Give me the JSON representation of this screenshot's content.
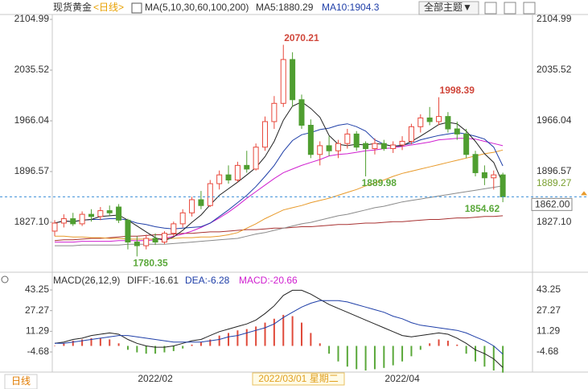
{
  "header": {
    "crosshair_icon": null
  },
  "tab": "日线",
  "theme_button": "全部主题▼",
  "chart_data": [
    {
      "type": "candlestick",
      "title": "现货黄金",
      "period": "<日线>",
      "indicator": "MA(5,10,30,60,100,200)",
      "indicator_values": [
        "MA5:1880.29",
        "MA10:1904.3"
      ],
      "crosshair_label": "2022/03/01 星期二",
      "categories": [
        null,
        null,
        null,
        null,
        null,
        null,
        null,
        null,
        null,
        null,
        null,
        "2022/02",
        null,
        null,
        null,
        null,
        null,
        null,
        null,
        null,
        null,
        null,
        null,
        null,
        null,
        null,
        null,
        null,
        null,
        null,
        null,
        null,
        null,
        null,
        null,
        null,
        null,
        null,
        "2022/04",
        null,
        null,
        null,
        null,
        null,
        null,
        null,
        null,
        null,
        null,
        null
      ],
      "open": [
        1815,
        1826,
        1832,
        1825,
        1838,
        1835,
        1843,
        1848,
        1830,
        1800,
        1795,
        1805,
        1800,
        1812,
        1825,
        1840,
        1858,
        1850,
        1880,
        1892,
        1885,
        1905,
        1900,
        1930,
        1965,
        1990,
        2050,
        1995,
        1960,
        1920,
        1932,
        1925,
        1935,
        1948,
        1935,
        1928,
        1935,
        1928,
        1933,
        1938,
        1958,
        1970,
        1965,
        1972,
        1955,
        1948,
        1920,
        1895,
        1888,
        1892
      ],
      "high": [
        1830,
        1838,
        1840,
        1842,
        1845,
        1848,
        1850,
        1852,
        1832,
        1808,
        1810,
        1812,
        1815,
        1828,
        1845,
        1862,
        1870,
        1885,
        1898,
        1905,
        1910,
        1925,
        1935,
        1972,
        2000,
        2070.21,
        2060,
        2002,
        1968,
        1938,
        1945,
        1940,
        1955,
        1952,
        1938,
        1942,
        1940,
        1938,
        1945,
        1962,
        1975,
        1985,
        1998.39,
        1978,
        1965,
        1955,
        1925,
        1905,
        1898,
        1895
      ],
      "low": [
        1808,
        1820,
        1822,
        1822,
        1828,
        1830,
        1836,
        1826,
        1790,
        1780.35,
        1790,
        1796,
        1797,
        1808,
        1820,
        1835,
        1845,
        1848,
        1872,
        1880,
        1882,
        1895,
        1898,
        1925,
        1955,
        1985,
        1985,
        1955,
        1915,
        1905,
        1918,
        1915,
        1928,
        1925,
        1889.98,
        1920,
        1925,
        1922,
        1926,
        1934,
        1950,
        1960,
        1960,
        1950,
        1940,
        1915,
        1890,
        1878,
        1872,
        1854.62
      ],
      "close": [
        1826,
        1832,
        1825,
        1838,
        1835,
        1843,
        1840,
        1830,
        1800,
        1795,
        1805,
        1800,
        1812,
        1825,
        1840,
        1858,
        1850,
        1880,
        1892,
        1885,
        1905,
        1900,
        1930,
        1965,
        1990,
        2050,
        1995,
        1960,
        1920,
        1932,
        1925,
        1935,
        1948,
        1930,
        1928,
        1935,
        1928,
        1933,
        1938,
        1958,
        1970,
        1965,
        1972,
        1955,
        1948,
        1920,
        1895,
        1888,
        1892,
        1862
      ],
      "up_color": "#e8483c",
      "down_color": "#4f9e30",
      "series": [
        {
          "color": "#222222",
          "values": [
            1826,
            1829,
            1828,
            1830,
            1831,
            1835,
            1836,
            1837,
            1830,
            1822,
            1814,
            1806,
            1802,
            1807,
            1816,
            1827,
            1837,
            1851,
            1864,
            1873,
            1882,
            1892,
            1902,
            1917,
            1938,
            1967,
            1986,
            1992,
            1983,
            1971,
            1946,
            1934,
            1932,
            1934,
            1933,
            1935,
            1934,
            1931,
            1932,
            1938,
            1945,
            1953,
            1961,
            1964,
            1962,
            1952,
            1938,
            1921,
            1909,
            1880.29
          ]
        },
        {
          "color": "#1f3fa8",
          "values": [
            1826,
            1829,
            1828,
            1830,
            1831,
            1831,
            1832,
            1832,
            1830,
            1826,
            1824,
            1821,
            1819,
            1818,
            1819,
            1820,
            1821,
            1826,
            1835,
            1844,
            1854,
            1864,
            1876,
            1890,
            1905,
            1924,
            1939,
            1947,
            1950,
            1954,
            1956,
            1960,
            1962,
            1958,
            1952,
            1940,
            1934,
            1931,
            1933,
            1935,
            1940,
            1943,
            1946,
            1948,
            1950,
            1948,
            1945,
            1941,
            1930,
            1904.3
          ]
        },
        {
          "color": "#d020d0",
          "values": [
            1800,
            1800,
            1800,
            1801,
            1801,
            1801,
            1801,
            1802,
            1802,
            1802,
            1802,
            1803,
            1805,
            1808,
            1811,
            1815,
            1820,
            1826,
            1833,
            1841,
            1850,
            1860,
            1869,
            1878,
            1887,
            1895,
            1900,
            1905,
            1909,
            1913,
            1918,
            1920,
            1921,
            1923,
            1925,
            1926,
            1928,
            1929,
            1931,
            1933,
            1935,
            1937,
            1940,
            1941,
            1942,
            1942,
            1941,
            1938,
            1935,
            1932
          ]
        },
        {
          "color": "#e89a2a",
          "values": [
            1808,
            1808,
            1807,
            1807,
            1806,
            1806,
            1805,
            1805,
            1804,
            1804,
            1804,
            1804,
            1805,
            1805,
            1806,
            1806,
            1807,
            1807,
            1808,
            1810,
            1813,
            1819,
            1825,
            1832,
            1838,
            1844,
            1847,
            1850,
            1854,
            1857,
            1860,
            1864,
            1868,
            1872,
            1877,
            1881,
            1885,
            1890,
            1894,
            1897,
            1900,
            1903,
            1906,
            1909,
            1912,
            1915,
            1918,
            1921,
            1923,
            1926
          ]
        },
        {
          "color": "#8a8a8a",
          "values": [
            1795,
            1795,
            1795,
            1796,
            1796,
            1796,
            1796,
            1796,
            1797,
            1797,
            1797,
            1797,
            1797,
            1798,
            1799,
            1800,
            1801,
            1802,
            1803,
            1804,
            1805,
            1808,
            1811,
            1813,
            1816,
            1819,
            1822,
            1825,
            1827,
            1830,
            1833,
            1836,
            1838,
            1841,
            1844,
            1847,
            1849,
            1852,
            1855,
            1857,
            1859,
            1861,
            1863,
            1865,
            1867,
            1869,
            1871,
            1873,
            1875,
            1877
          ]
        },
        {
          "color": "#a83232",
          "values": [
            1802,
            1803,
            1803,
            1804,
            1805,
            1805,
            1806,
            1807,
            1808,
            1808,
            1809,
            1810,
            1810,
            1811,
            1812,
            1812,
            1813,
            1814,
            1814,
            1815,
            1816,
            1817,
            1817,
            1818,
            1819,
            1819,
            1820,
            1821,
            1821,
            1822,
            1823,
            1824,
            1824,
            1825,
            1826,
            1826,
            1827,
            1828,
            1828,
            1829,
            1830,
            1831,
            1831,
            1832,
            1833,
            1833,
            1834,
            1835,
            1835,
            1836
          ]
        }
      ],
      "ylim": [
        1762,
        2115
      ],
      "yticks": [
        2104.99,
        2035.52,
        1966.04,
        1896.57,
        {
          "value": 1827.1,
          "label": "1827.10"
        }
      ],
      "last_price": {
        "value": 1862,
        "label": "1862.00"
      },
      "price_marker": 1889.27
    },
    {
      "type": "macd",
      "title": "MACD(26,12,9)",
      "indicator_values": [
        "DIFF:-16.61",
        "DEA:-6.28",
        "MACD:-20.66"
      ],
      "series": [
        {
          "color": "#222222",
          "values": [
            2,
            3,
            5,
            6,
            8,
            9,
            10,
            9,
            5,
            2,
            0,
            -1,
            -1,
            0,
            2,
            4,
            5,
            8,
            11,
            13,
            15,
            17,
            20,
            25,
            31,
            39,
            43,
            43,
            40,
            36,
            32,
            29,
            26,
            23,
            20,
            17,
            14,
            11,
            8,
            7,
            8,
            9,
            10,
            9,
            6,
            2,
            -3,
            -6,
            -10,
            -16.61
          ]
        },
        {
          "color": "#1f3fa8",
          "values": [
            2,
            2,
            3,
            4,
            5,
            6,
            7,
            8,
            8,
            7,
            6,
            5,
            4,
            3,
            3,
            3,
            3,
            4,
            5,
            7,
            8,
            10,
            12,
            14,
            17,
            22,
            26,
            30,
            33,
            35,
            35,
            35,
            34,
            32,
            30,
            28,
            26,
            23,
            21,
            18,
            16,
            15,
            14,
            13,
            12,
            10,
            7,
            4,
            0,
            -6.28
          ]
        }
      ],
      "histogram": [
        0,
        2,
        4,
        5,
        6,
        6,
        5,
        2,
        -3,
        -5,
        -6,
        -6,
        -5,
        -4,
        -2,
        1,
        3,
        5,
        8,
        10,
        12,
        13,
        15,
        18,
        21,
        24,
        23,
        18,
        10,
        2,
        -6,
        -12,
        -16,
        -18,
        -19,
        -18,
        -17,
        -15,
        -12,
        -8,
        -3,
        2,
        5,
        4,
        1,
        -6,
        -12,
        -16,
        -19,
        -20.66
      ],
      "up_color": "#e04a3a",
      "down_color": "#5aa83a",
      "ylim": [
        -22.1,
        52.6
      ],
      "yticks": [
        43.25,
        27.27,
        11.29,
        -4.68
      ]
    }
  ]
}
